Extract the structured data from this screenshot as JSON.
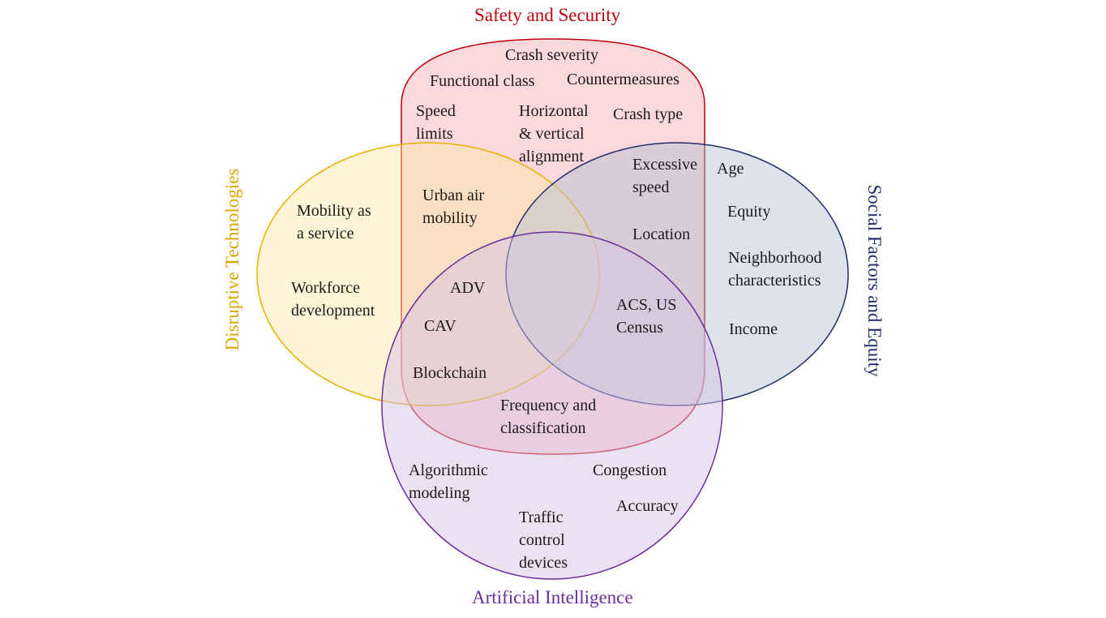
{
  "sets": {
    "safety": {
      "title": "Safety and Security",
      "color": "#c0000b",
      "fill": "#f4a8b0"
    },
    "disruptive": {
      "title": "Disruptive Technologies",
      "color": "#d9a500",
      "fill": "#fde8a6"
    },
    "social": {
      "title": "Social Factors and Equity",
      "color": "#1f2d6b",
      "fill": "#b3bed3"
    },
    "ai": {
      "title": "Artificial Intelligence",
      "color": "#6a2d9a",
      "fill": "#d6c3e6"
    }
  },
  "items": {
    "crash_severity": "Crash severity",
    "functional_class": "Functional class",
    "countermeasures": "Countermeasures",
    "speed_limits": "Speed\nlimits",
    "horizontal_vertical": "Horizontal\n& vertical\nalignment",
    "crash_type": "Crash type",
    "excessive_speed": "Excessive\nspeed",
    "age": "Age",
    "equity": "Equity",
    "urban_air_mobility": "Urban air\nmobility",
    "mobility_service": "Mobility as\na service",
    "location": "Location",
    "neighborhood": "Neighborhood\ncharacteristics",
    "workforce": "Workforce\ndevelopment",
    "adv": "ADV",
    "acs_census": "ACS, US\nCensus",
    "cav": "CAV",
    "income": "Income",
    "blockchain": "Blockchain",
    "frequency": "Frequency and\nclassification",
    "algorithmic": "Algorithmic\nmodeling",
    "congestion": "Congestion",
    "accuracy": "Accuracy",
    "traffic_control": "Traffic\ncontrol\ndevices"
  }
}
